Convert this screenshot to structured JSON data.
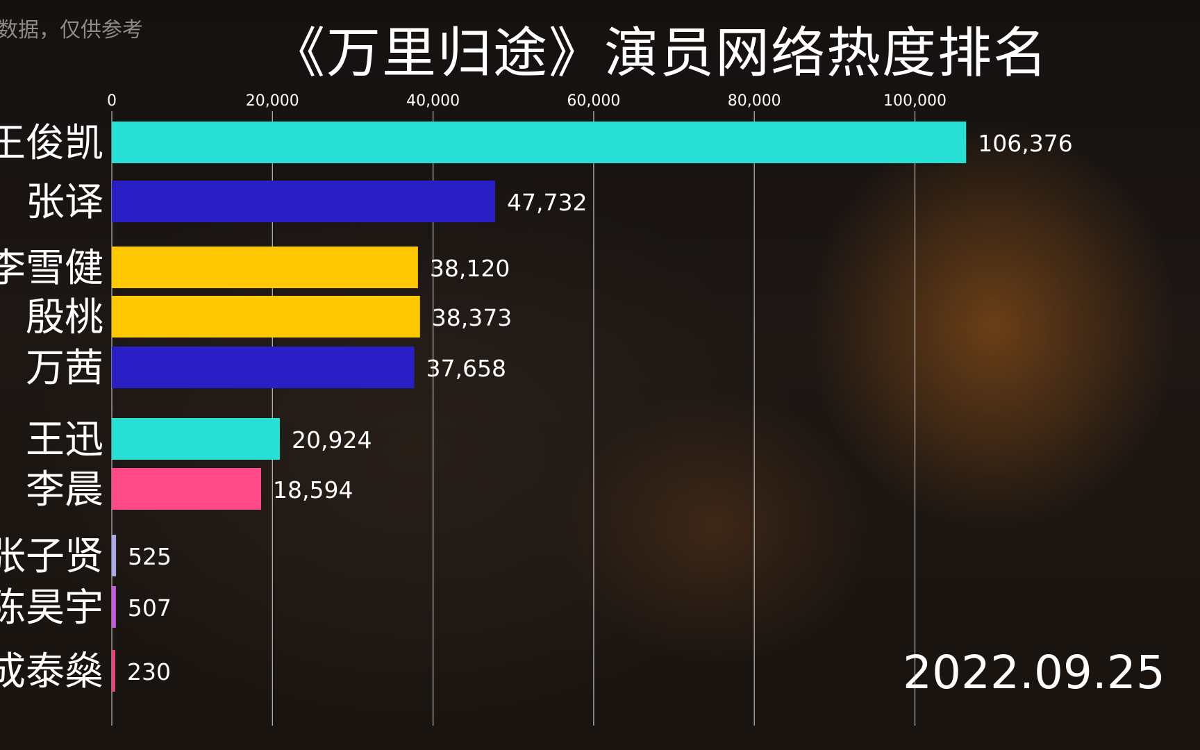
{
  "watermark": "数据，仅供参考",
  "title": "《万里归途》演员网络热度排名",
  "date": "2022.09.25",
  "chart_data": {
    "type": "bar",
    "orientation": "horizontal",
    "title": "《万里归途》演员网络热度排名",
    "xlabel": "",
    "ylabel": "",
    "xlim": [
      0,
      110000
    ],
    "x_ticks": [
      0,
      20000,
      40000,
      60000,
      80000,
      100000
    ],
    "x_tick_labels": [
      "0",
      "20,000",
      "40,000",
      "60,000",
      "80,000",
      "100,000"
    ],
    "grid": true,
    "categories": [
      "王俊凯",
      "张译",
      "李雪健",
      "殷桃",
      "万茜",
      "王迅",
      "李晨",
      "张子贤",
      "陈昊宇",
      "成泰燊"
    ],
    "values": [
      106376,
      47732,
      38120,
      38373,
      37658,
      20924,
      18594,
      525,
      507,
      230
    ],
    "value_labels": [
      "106,376",
      "47,732",
      "38,120",
      "38,373",
      "37,658",
      "20,924",
      "18,594",
      "525",
      "507",
      "230"
    ],
    "colors": [
      "#27dfd4",
      "#2a1fc4",
      "#ffc800",
      "#ffc800",
      "#2a1fc4",
      "#27dfd4",
      "#ff4a87",
      "#a9a9e8",
      "#c85ae0",
      "#e5457c"
    ]
  }
}
